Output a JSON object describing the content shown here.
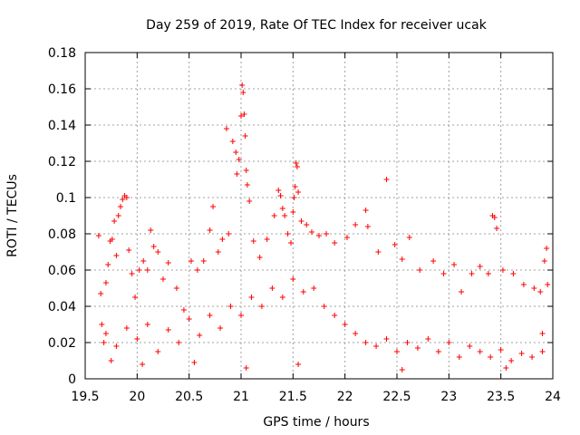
{
  "chart_data": {
    "type": "scatter",
    "title": "Day 259 of 2019, Rate Of TEC Index for receiver ucak",
    "xlabel": "GPS time / hours",
    "ylabel": "ROTI / TECUs",
    "xlim": [
      19.5,
      24
    ],
    "ylim": [
      0,
      0.18
    ],
    "xticks": [
      "19.5",
      "20",
      "20.5",
      "21",
      "21.5",
      "22",
      "22.5",
      "23",
      "23.5",
      "24"
    ],
    "yticks": [
      "0",
      "0.02",
      "0.04",
      "0.06",
      "0.08",
      "0.1",
      "0.12",
      "0.14",
      "0.16",
      "0.18"
    ],
    "grid": true,
    "marker": "+",
    "marker_color": "#ff0000",
    "series": [
      {
        "name": "ROTI",
        "note": "dense scatter; representative points read from the figure",
        "points": [
          [
            19.63,
            0.079
          ],
          [
            19.65,
            0.047
          ],
          [
            19.66,
            0.03
          ],
          [
            19.68,
            0.02
          ],
          [
            19.7,
            0.053
          ],
          [
            19.72,
            0.063
          ],
          [
            19.74,
            0.076
          ],
          [
            19.76,
            0.077
          ],
          [
            19.78,
            0.087
          ],
          [
            19.8,
            0.068
          ],
          [
            19.82,
            0.09
          ],
          [
            19.84,
            0.095
          ],
          [
            19.86,
            0.099
          ],
          [
            19.88,
            0.101
          ],
          [
            19.9,
            0.1
          ],
          [
            19.92,
            0.071
          ],
          [
            19.95,
            0.058
          ],
          [
            19.98,
            0.045
          ],
          [
            20.02,
            0.06
          ],
          [
            20.06,
            0.065
          ],
          [
            20.1,
            0.06
          ],
          [
            20.13,
            0.082
          ],
          [
            20.16,
            0.073
          ],
          [
            20.2,
            0.07
          ],
          [
            20.25,
            0.055
          ],
          [
            20.3,
            0.064
          ],
          [
            20.38,
            0.05
          ],
          [
            20.45,
            0.038
          ],
          [
            20.52,
            0.065
          ],
          [
            20.58,
            0.06
          ],
          [
            20.64,
            0.065
          ],
          [
            20.7,
            0.082
          ],
          [
            20.73,
            0.095
          ],
          [
            20.78,
            0.07
          ],
          [
            20.82,
            0.077
          ],
          [
            20.86,
            0.138
          ],
          [
            20.88,
            0.08
          ],
          [
            20.92,
            0.131
          ],
          [
            20.95,
            0.125
          ],
          [
            20.96,
            0.113
          ],
          [
            20.98,
            0.121
          ],
          [
            21.0,
            0.145
          ],
          [
            21.01,
            0.162
          ],
          [
            21.02,
            0.158
          ],
          [
            21.03,
            0.146
          ],
          [
            21.04,
            0.134
          ],
          [
            21.05,
            0.115
          ],
          [
            21.06,
            0.107
          ],
          [
            21.08,
            0.098
          ],
          [
            21.12,
            0.076
          ],
          [
            21.18,
            0.067
          ],
          [
            21.25,
            0.077
          ],
          [
            21.32,
            0.09
          ],
          [
            21.36,
            0.104
          ],
          [
            21.38,
            0.101
          ],
          [
            21.4,
            0.094
          ],
          [
            21.42,
            0.09
          ],
          [
            21.45,
            0.08
          ],
          [
            21.48,
            0.075
          ],
          [
            21.5,
            0.092
          ],
          [
            21.51,
            0.1
          ],
          [
            21.52,
            0.106
          ],
          [
            21.53,
            0.119
          ],
          [
            21.54,
            0.117
          ],
          [
            21.55,
            0.103
          ],
          [
            21.58,
            0.087
          ],
          [
            21.63,
            0.085
          ],
          [
            21.68,
            0.081
          ],
          [
            21.75,
            0.079
          ],
          [
            21.82,
            0.08
          ],
          [
            21.9,
            0.075
          ],
          [
            22.02,
            0.078
          ],
          [
            22.1,
            0.085
          ],
          [
            22.2,
            0.093
          ],
          [
            22.22,
            0.084
          ],
          [
            22.32,
            0.07
          ],
          [
            22.4,
            0.11
          ],
          [
            22.48,
            0.074
          ],
          [
            22.55,
            0.066
          ],
          [
            22.62,
            0.078
          ],
          [
            22.72,
            0.06
          ],
          [
            22.85,
            0.065
          ],
          [
            22.95,
            0.058
          ],
          [
            23.05,
            0.063
          ],
          [
            23.12,
            0.048
          ],
          [
            23.22,
            0.058
          ],
          [
            23.3,
            0.062
          ],
          [
            23.38,
            0.058
          ],
          [
            23.42,
            0.09
          ],
          [
            23.44,
            0.089
          ],
          [
            23.46,
            0.083
          ],
          [
            23.52,
            0.06
          ],
          [
            23.62,
            0.058
          ],
          [
            23.72,
            0.052
          ],
          [
            23.82,
            0.05
          ],
          [
            23.88,
            0.048
          ],
          [
            23.92,
            0.065
          ],
          [
            23.94,
            0.072
          ],
          [
            23.95,
            0.052
          ],
          [
            23.9,
            0.025
          ],
          [
            19.7,
            0.025
          ],
          [
            19.8,
            0.018
          ],
          [
            19.9,
            0.028
          ],
          [
            20.0,
            0.022
          ],
          [
            20.1,
            0.03
          ],
          [
            20.2,
            0.015
          ],
          [
            20.3,
            0.027
          ],
          [
            20.4,
            0.02
          ],
          [
            20.5,
            0.033
          ],
          [
            20.6,
            0.024
          ],
          [
            20.7,
            0.035
          ],
          [
            20.8,
            0.028
          ],
          [
            20.9,
            0.04
          ],
          [
            21.0,
            0.035
          ],
          [
            21.1,
            0.045
          ],
          [
            21.2,
            0.04
          ],
          [
            21.3,
            0.05
          ],
          [
            21.4,
            0.045
          ],
          [
            21.5,
            0.055
          ],
          [
            21.6,
            0.048
          ],
          [
            21.7,
            0.05
          ],
          [
            21.8,
            0.04
          ],
          [
            21.9,
            0.035
          ],
          [
            22.0,
            0.03
          ],
          [
            22.1,
            0.025
          ],
          [
            22.2,
            0.02
          ],
          [
            22.3,
            0.018
          ],
          [
            22.4,
            0.022
          ],
          [
            22.5,
            0.015
          ],
          [
            22.6,
            0.02
          ],
          [
            22.7,
            0.017
          ],
          [
            22.8,
            0.022
          ],
          [
            22.9,
            0.015
          ],
          [
            23.0,
            0.02
          ],
          [
            23.1,
            0.012
          ],
          [
            23.2,
            0.018
          ],
          [
            23.3,
            0.015
          ],
          [
            23.4,
            0.012
          ],
          [
            23.5,
            0.016
          ],
          [
            23.6,
            0.01
          ],
          [
            23.7,
            0.014
          ],
          [
            23.8,
            0.012
          ],
          [
            23.9,
            0.015
          ],
          [
            19.75,
            0.01
          ],
          [
            20.05,
            0.008
          ],
          [
            20.55,
            0.009
          ],
          [
            21.05,
            0.006
          ],
          [
            21.55,
            0.008
          ],
          [
            22.55,
            0.005
          ],
          [
            23.55,
            0.006
          ]
        ]
      }
    ]
  }
}
